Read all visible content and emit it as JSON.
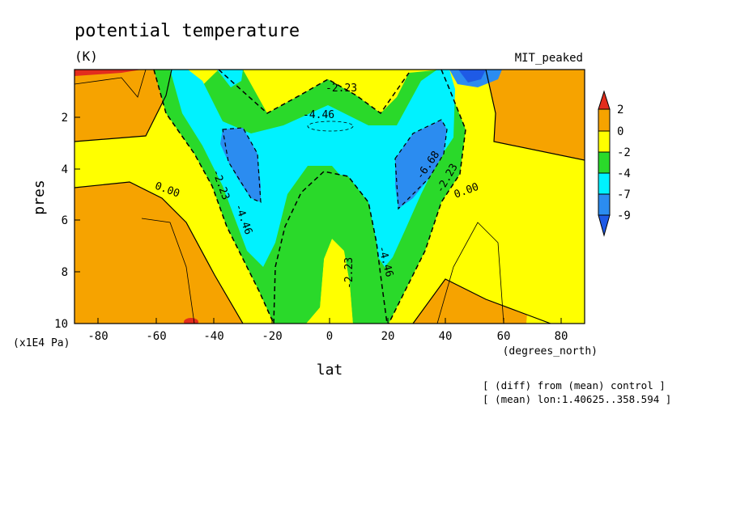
{
  "chart_data": {
    "type": "contour",
    "title": "potential temperature",
    "units": "(K)",
    "experiment": "MIT_peaked",
    "xlabel": "lat",
    "xunits": "(degrees_north)",
    "ylabel": "pres",
    "yunits": "(x1E4 Pa)",
    "xlim": [
      -88,
      88
    ],
    "ylim": [
      10,
      0.05
    ],
    "xticks": [
      "-80",
      "-60",
      "-40",
      "-20",
      "0",
      "20",
      "40",
      "60",
      "80"
    ],
    "yticks": [
      "2",
      "4",
      "6",
      "8",
      "10"
    ],
    "colorbar": {
      "levels": [
        "2",
        "0",
        "-2",
        "-4",
        "-7",
        "-9"
      ],
      "colors": [
        "#e32d1d",
        "#f6a300",
        "#ffff00",
        "#2ad92a",
        "#00f2ff",
        "#2b8cf0",
        "#1e5ae6"
      ]
    },
    "contour_labels": [
      "-2.23",
      "-4.46",
      "-4.46",
      "-4.46",
      "-6.68",
      "-2.23",
      "-2.23",
      "-2.23",
      "0.00",
      "0.00"
    ],
    "notes": [
      "[ (diff) from (mean) control ]",
      "[ (mean) lon:1.40625..358.594 ]"
    ]
  }
}
